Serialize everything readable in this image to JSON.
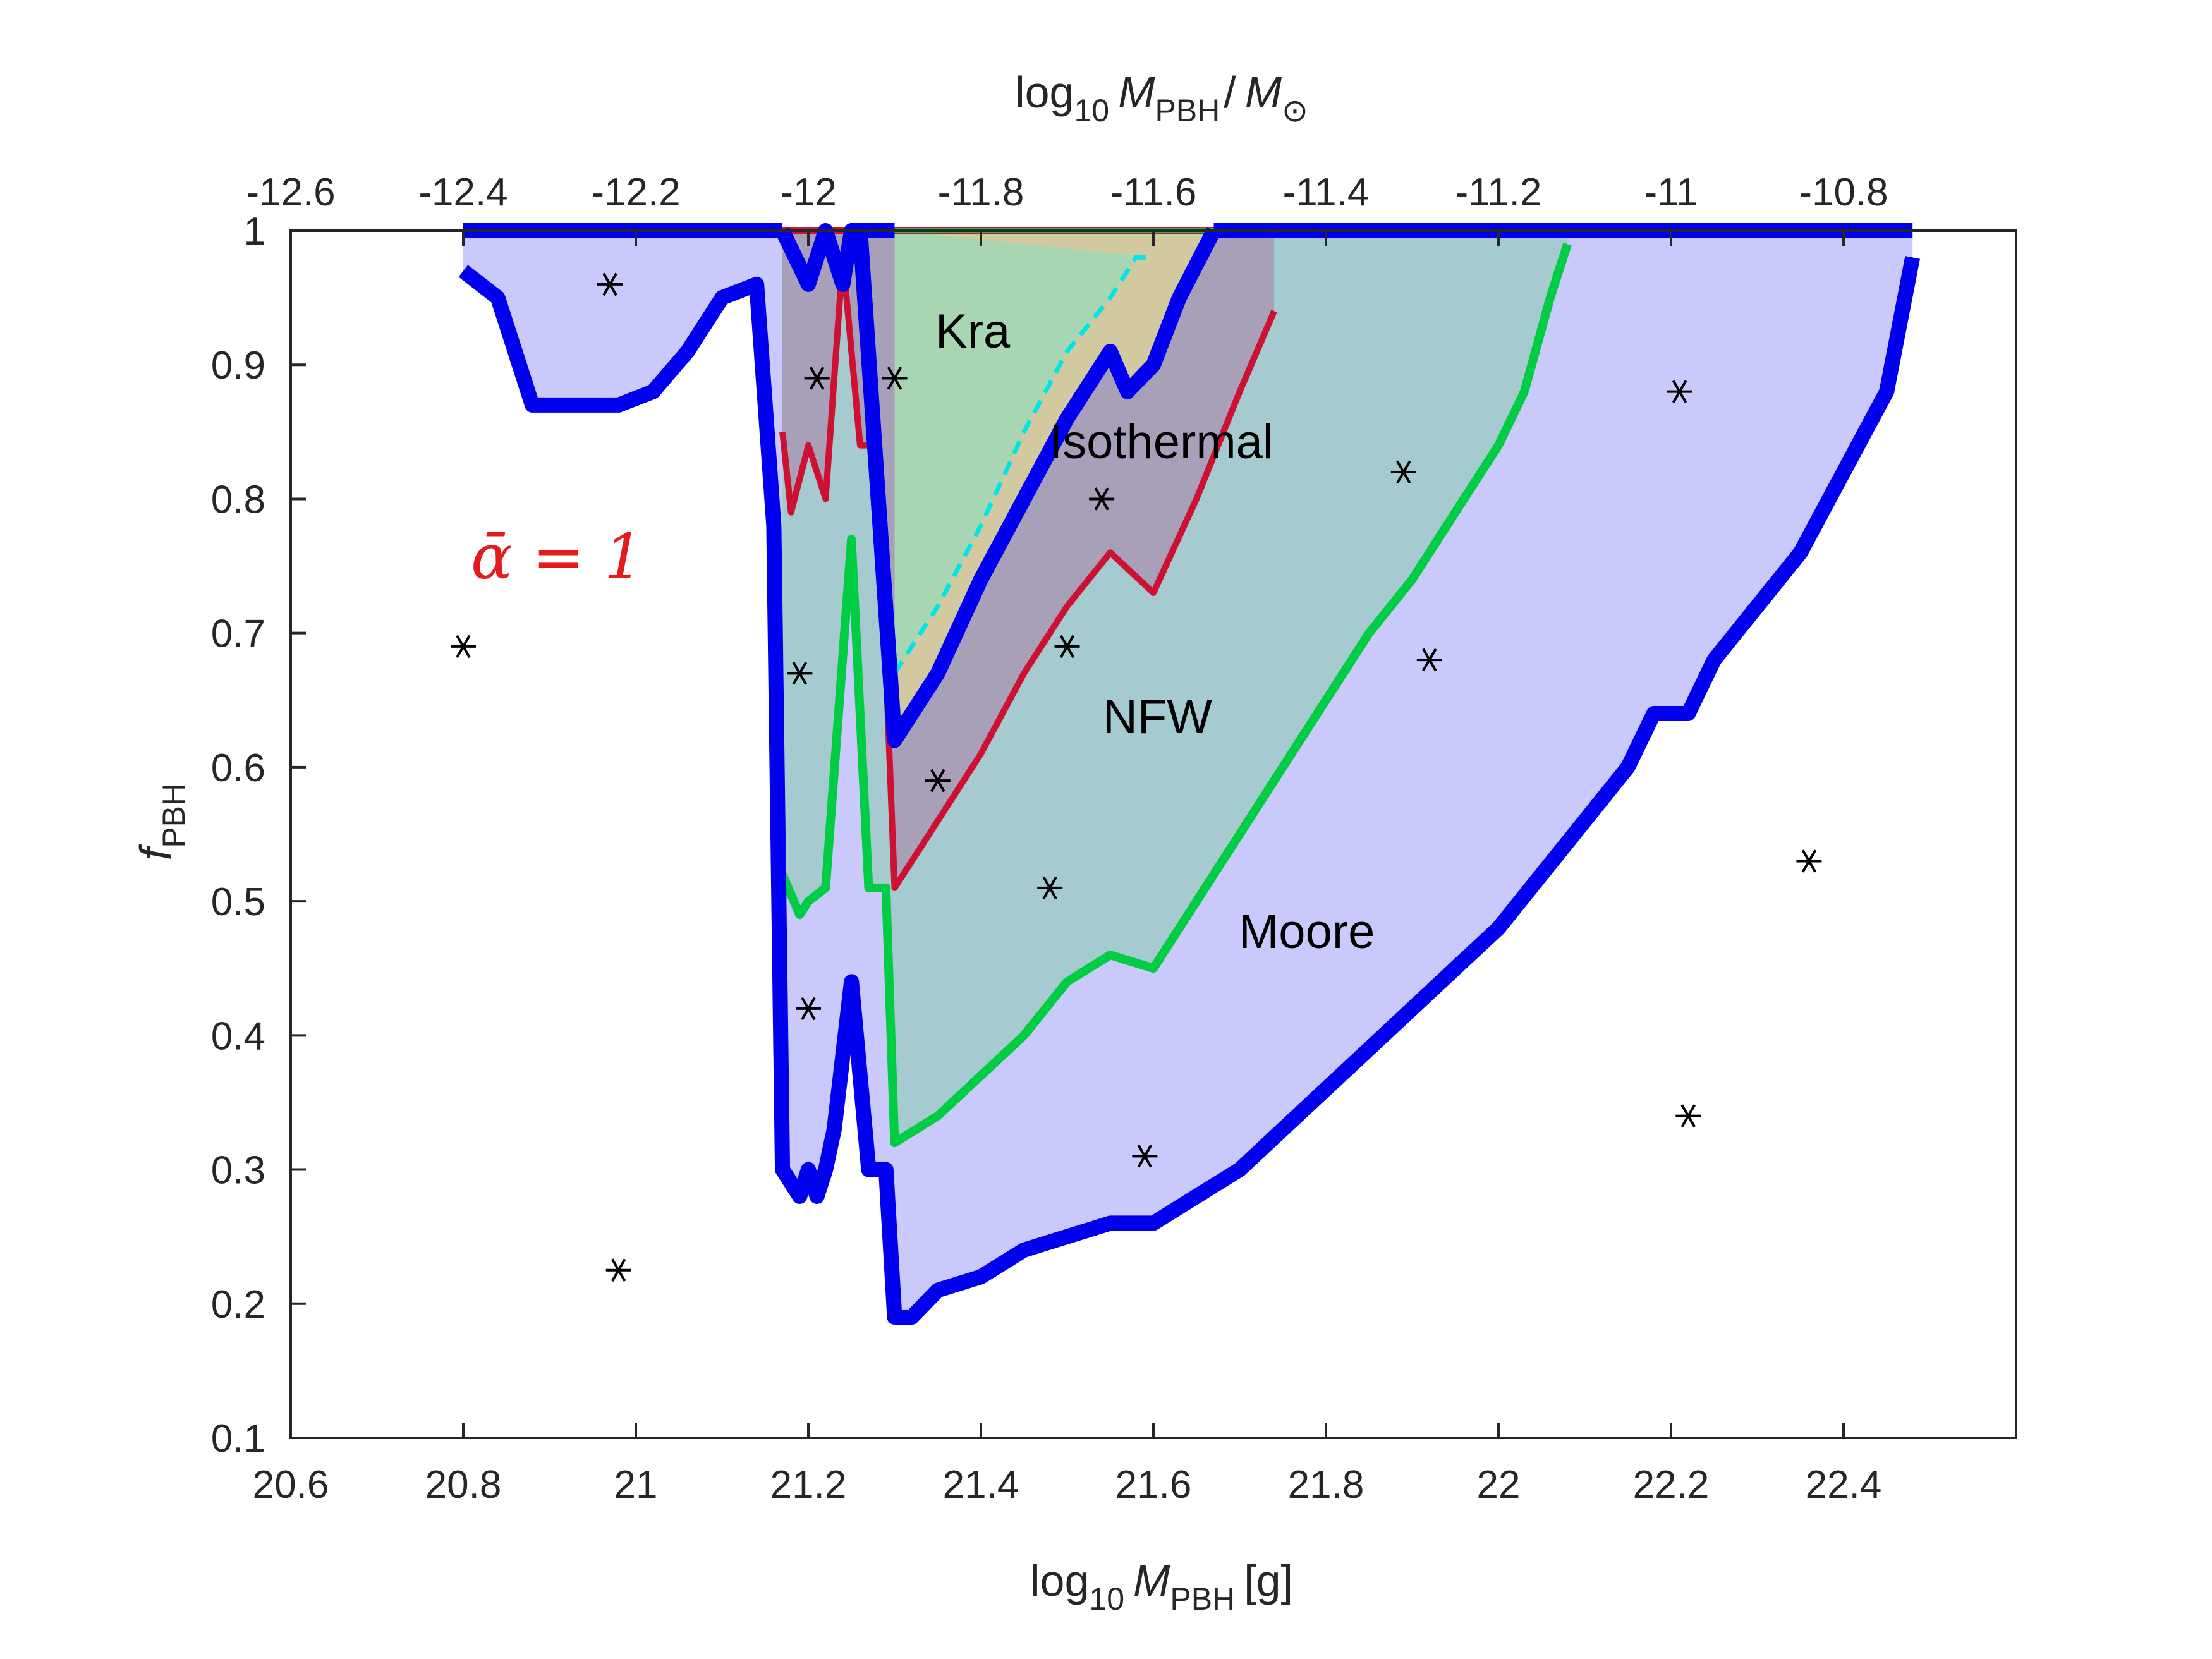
{
  "chart_data": {
    "type": "area",
    "xlabel": {
      "base": "log",
      "sub": "10",
      "var": "M",
      "var_sub": "PBH",
      "unit": "[g]"
    },
    "ylabel": {
      "var": "f",
      "var_sub": "PBH"
    },
    "top_xlabel": {
      "base": "log",
      "sub": "10",
      "var": "M",
      "var_sub": "PBH",
      "sep": "/",
      "var2": "M",
      "var2_sub": "⊙"
    },
    "xlim": [
      20.6,
      22.6
    ],
    "ylim": [
      0.1,
      1.0
    ],
    "xticks": [
      "20.6",
      "20.8",
      "21",
      "21.2",
      "21.4",
      "21.6",
      "21.8",
      "22",
      "22.2",
      "22.4"
    ],
    "yticks": [
      "0.1",
      "0.2",
      "0.3",
      "0.4",
      "0.5",
      "0.6",
      "0.7",
      "0.8",
      "0.9",
      "1"
    ],
    "top_xticks": [
      "-12.6",
      "-12.4",
      "-12.2",
      "-12",
      "-11.8",
      "-11.6",
      "-11.4",
      "-11.2",
      "-11",
      "-10.8"
    ],
    "top_tick_values": [
      -12.6,
      -12.4,
      -12.2,
      -12.0,
      -11.8,
      -11.6,
      -11.4,
      -11.2,
      -11.0,
      -10.8
    ],
    "annotation": "ᾱ = 1",
    "labels": {
      "kra": "Kra",
      "isothermal": "Isothermal",
      "nfw": "NFW",
      "moore": "Moore"
    },
    "colors": {
      "moore": "#0000ee",
      "moore_fill": "#c9c9fb",
      "nfw": "#00cc44",
      "nfw_fill": "#a5cbd0",
      "isothermal": "#cc1133",
      "isothermal_fill": "#a89fb8",
      "kra": "#00e6e6",
      "kra_fill": "#a9d6b2",
      "kra_extra_fill": "#d3c9a0"
    },
    "series": {
      "moore": {
        "x": [
          20.8,
          20.84,
          20.88,
          20.9,
          20.95,
          20.98,
          21.02,
          21.06,
          21.1,
          21.14,
          21.16,
          21.17,
          21.19,
          21.2,
          21.21,
          21.22,
          21.23,
          21.25,
          21.27,
          21.29,
          21.3,
          21.32,
          21.35,
          21.4,
          21.45,
          21.5,
          21.55,
          21.6,
          21.65,
          21.7,
          21.75,
          21.8,
          21.85,
          21.9,
          21.95,
          22.0,
          22.05,
          22.1,
          22.15,
          22.18,
          22.22,
          22.25,
          22.3,
          22.35,
          22.4,
          22.45,
          22.48
        ],
        "y": [
          0.97,
          0.95,
          0.87,
          0.87,
          0.87,
          0.87,
          0.88,
          0.91,
          0.95,
          0.96,
          0.78,
          0.3,
          0.28,
          0.3,
          0.28,
          0.3,
          0.33,
          0.44,
          0.3,
          0.3,
          0.19,
          0.19,
          0.21,
          0.22,
          0.24,
          0.25,
          0.26,
          0.26,
          0.28,
          0.3,
          0.33,
          0.36,
          0.39,
          0.42,
          0.45,
          0.48,
          0.52,
          0.56,
          0.6,
          0.64,
          0.64,
          0.68,
          0.72,
          0.76,
          0.82,
          0.88,
          0.98
        ]
      },
      "nfw": {
        "x": [
          21.17,
          21.19,
          21.2,
          21.22,
          21.25,
          21.27,
          21.29,
          21.3,
          21.35,
          21.4,
          21.45,
          21.5,
          21.55,
          21.6,
          21.65,
          21.7,
          21.75,
          21.8,
          21.85,
          21.9,
          21.95,
          22.0,
          22.03,
          22.06,
          22.08
        ],
        "y": [
          0.52,
          0.49,
          0.5,
          0.51,
          0.77,
          0.51,
          0.51,
          0.32,
          0.34,
          0.37,
          0.4,
          0.44,
          0.46,
          0.45,
          0.5,
          0.55,
          0.6,
          0.65,
          0.7,
          0.74,
          0.79,
          0.84,
          0.88,
          0.95,
          0.99
        ]
      },
      "isothermal": {
        "x": [
          21.17,
          21.18,
          21.2,
          21.22,
          21.24,
          21.26,
          21.28,
          21.3,
          21.35,
          21.4,
          21.45,
          21.5,
          21.55,
          21.6,
          21.65,
          21.7,
          21.74
        ],
        "y": [
          0.85,
          0.79,
          0.84,
          0.8,
          0.98,
          0.84,
          0.84,
          0.51,
          0.56,
          0.61,
          0.67,
          0.72,
          0.76,
          0.73,
          0.8,
          0.88,
          0.94
        ]
      },
      "kra": {
        "x": [
          21.3,
          21.35,
          21.4,
          21.45,
          21.5,
          21.55,
          21.58,
          21.6
        ],
        "y": [
          0.67,
          0.72,
          0.78,
          0.85,
          0.91,
          0.95,
          0.98,
          0.98
        ]
      },
      "moore_inner_edge": {
        "x": [
          21.17,
          21.2,
          21.22,
          21.24,
          21.25,
          21.26,
          21.3,
          21.35,
          21.4,
          21.45,
          21.5,
          21.55,
          21.57,
          21.6,
          21.63,
          21.67
        ],
        "y": [
          1.0,
          0.96,
          1.0,
          0.96,
          1.0,
          1.0,
          0.62,
          0.67,
          0.74,
          0.8,
          0.86,
          0.91,
          0.88,
          0.9,
          0.95,
          1.0
        ]
      }
    },
    "scatter_points": {
      "x": [
        20.8,
        20.97,
        21.2,
        21.21,
        21.19,
        21.3,
        21.35,
        21.48,
        21.5,
        21.54,
        21.59,
        21.89,
        21.92,
        22.21,
        22.22,
        22.36
      ],
      "y": [
        0.69,
        0.96,
        0.42,
        0.89,
        0.67,
        0.89,
        0.59,
        0.51,
        0.69,
        0.8,
        0.31,
        0.82,
        0.68,
        0.88,
        0.34,
        0.53
      ]
    },
    "extra_scatter": {
      "x": [
        20.98
      ],
      "y": [
        0.225
      ]
    }
  }
}
